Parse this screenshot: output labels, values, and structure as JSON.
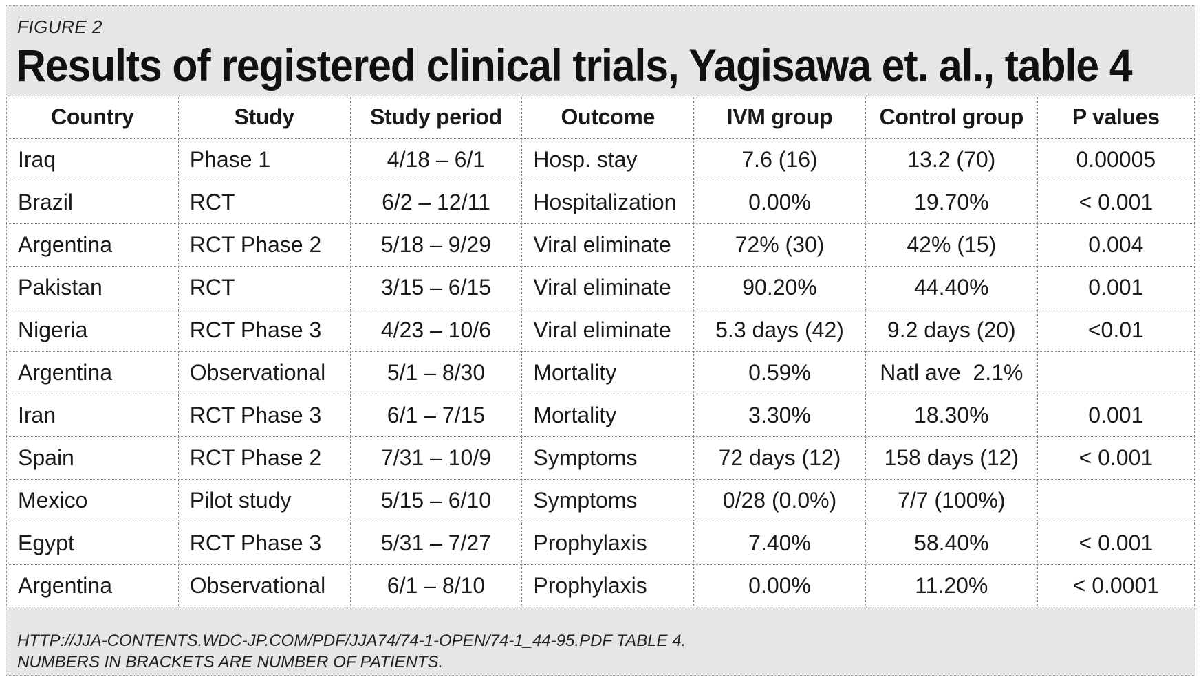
{
  "figure_label": "FIGURE 2",
  "title": "Results of registered clinical trials, Yagisawa et. al., table 4",
  "table": {
    "columns": [
      "Country",
      "Study",
      "Study period",
      "Outcome",
      "IVM group",
      "Control group",
      "P values"
    ],
    "rows": [
      [
        "Iraq",
        "Phase 1",
        "4/18 – 6/1",
        "Hosp. stay",
        "7.6 (16)",
        "13.2 (70)",
        "0.00005"
      ],
      [
        "Brazil",
        "RCT",
        "6/2 – 12/11",
        "Hospitalization",
        "0.00%",
        "19.70%",
        "< 0.001"
      ],
      [
        "Argentina",
        "RCT Phase 2",
        "5/18 – 9/29",
        "Viral eliminate",
        "72% (30)",
        "42% (15)",
        "0.004"
      ],
      [
        "Pakistan",
        "RCT",
        "3/15 – 6/15",
        "Viral eliminate",
        "90.20%",
        "44.40%",
        "0.001"
      ],
      [
        "Nigeria",
        "RCT Phase 3",
        "4/23 – 10/6",
        "Viral eliminate",
        "5.3 days (42)",
        "9.2 days (20)",
        "<0.01"
      ],
      [
        "Argentina",
        "Observational",
        "5/1 – 8/30",
        "Mortality",
        "0.59%",
        "Natl ave  2.1%",
        ""
      ],
      [
        "Iran",
        "RCT Phase 3",
        "6/1 – 7/15",
        "Mortality",
        "3.30%",
        "18.30%",
        "0.001"
      ],
      [
        "Spain",
        "RCT Phase 2",
        "7/31 – 10/9",
        "Symptoms",
        "72 days (12)",
        "158 days (12)",
        "< 0.001"
      ],
      [
        "Mexico",
        "Pilot study",
        "5/15 – 6/10",
        "Symptoms",
        "0/28 (0.0%)",
        "7/7 (100%)",
        ""
      ],
      [
        "Egypt",
        "RCT Phase 3",
        "5/31 – 7/27",
        "Prophylaxis",
        "7.40%",
        "58.40%",
        "< 0.001"
      ],
      [
        "Argentina",
        "Observational",
        "6/1 – 8/10",
        "Prophylaxis",
        "0.00%",
        "11.20%",
        "< 0.0001"
      ]
    ]
  },
  "footer": {
    "source": "HTTP://JJA-CONTENTS.WDC-JP.COM/PDF/JJA74/74-1-OPEN/74-1_44-95.PDF TABLE 4.",
    "note": "NUMBERS IN BRACKETS ARE NUMBER OF PATIENTS."
  }
}
